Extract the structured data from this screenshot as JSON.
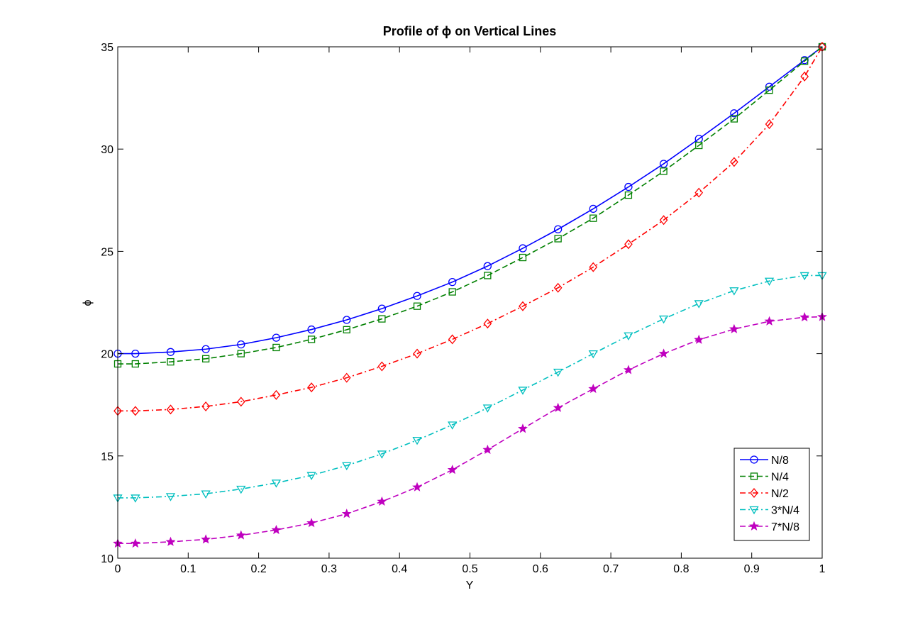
{
  "chart_data": {
    "type": "line",
    "title": "Profile of ϕ on Vertical Lines",
    "xlabel": "Y",
    "ylabel": "ϕ",
    "xlim": [
      0,
      1
    ],
    "ylim": [
      10,
      35
    ],
    "xticks": [
      0,
      0.1,
      0.2,
      0.3,
      0.4,
      0.5,
      0.6,
      0.7,
      0.8,
      0.9,
      1
    ],
    "xtick_labels": [
      "0",
      "0.1",
      "0.2",
      "0.3",
      "0.4",
      "0.5",
      "0.6",
      "0.7",
      "0.8",
      "0.9",
      "1"
    ],
    "yticks": [
      10,
      15,
      20,
      25,
      30,
      35
    ],
    "ytick_labels": [
      "10",
      "15",
      "20",
      "25",
      "30",
      "35"
    ],
    "grid": false,
    "legend_position": "lower-right",
    "x": [
      0,
      0.025,
      0.075,
      0.125,
      0.175,
      0.225,
      0.275,
      0.325,
      0.375,
      0.425,
      0.475,
      0.525,
      0.575,
      0.625,
      0.675,
      0.725,
      0.775,
      0.825,
      0.875,
      0.925,
      0.975,
      1
    ],
    "series": [
      {
        "name": "N/8",
        "color": "#0000ff",
        "line_style": "solid",
        "marker": "circle",
        "values": [
          20.0,
          20.0,
          20.08,
          20.22,
          20.45,
          20.78,
          21.18,
          21.65,
          22.2,
          22.82,
          23.5,
          24.28,
          25.15,
          26.08,
          27.08,
          28.15,
          29.28,
          30.5,
          31.75,
          33.05,
          34.35,
          35.0
        ]
      },
      {
        "name": "N/4",
        "color": "#008000",
        "line_style": "dashed",
        "marker": "square",
        "values": [
          19.5,
          19.5,
          19.6,
          19.75,
          20.0,
          20.3,
          20.7,
          21.17,
          21.7,
          22.32,
          23.02,
          23.82,
          24.7,
          25.62,
          26.62,
          27.75,
          28.92,
          30.18,
          31.48,
          32.88,
          34.3,
          35.0
        ]
      },
      {
        "name": "N/2",
        "color": "#ff0000",
        "line_style": "dash-dot",
        "marker": "diamond",
        "values": [
          17.2,
          17.2,
          17.27,
          17.42,
          17.65,
          17.98,
          18.35,
          18.82,
          19.38,
          20.0,
          20.7,
          21.47,
          22.32,
          23.22,
          24.23,
          25.35,
          26.53,
          27.87,
          29.37,
          31.22,
          33.55,
          35.0
        ]
      },
      {
        "name": "3*N/4",
        "color": "#00bfbf",
        "line_style": "dash-dot",
        "marker": "triangle-down",
        "values": [
          12.95,
          12.95,
          13.02,
          13.15,
          13.38,
          13.68,
          14.05,
          14.53,
          15.1,
          15.77,
          16.52,
          17.35,
          18.22,
          19.1,
          20.0,
          20.88,
          21.7,
          22.45,
          23.08,
          23.55,
          23.82,
          23.82
        ]
      },
      {
        "name": "7*N/8",
        "color": "#bf00bf",
        "line_style": "dashed",
        "marker": "star",
        "values": [
          10.72,
          10.72,
          10.8,
          10.92,
          11.12,
          11.38,
          11.72,
          12.17,
          12.77,
          13.47,
          14.32,
          15.3,
          16.33,
          17.35,
          18.28,
          19.2,
          20.0,
          20.68,
          21.2,
          21.58,
          21.78,
          21.8
        ]
      }
    ]
  }
}
